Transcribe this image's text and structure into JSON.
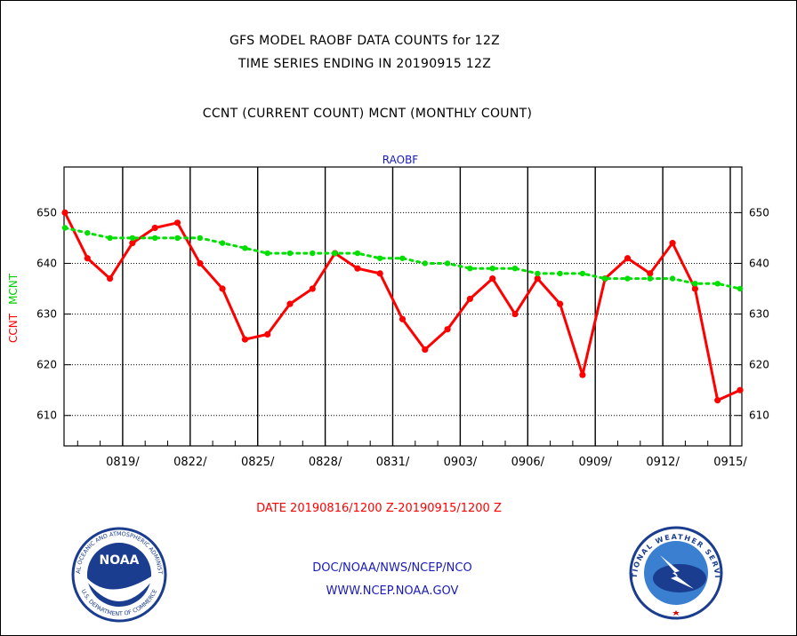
{
  "header": {
    "title_line1": "GFS MODEL RAOBF DATA COUNTS for 12Z",
    "title_line2": "TIME SERIES ENDING IN 20190915 12Z",
    "subtitle": "CCNT (CURRENT COUNT) MCNT (MONTHLY COUNT)"
  },
  "chart_data": {
    "type": "line",
    "title": "RAOBF",
    "ylabel_ccnt": "CCNT",
    "ylabel_mcnt": "MCNT",
    "ylim": [
      604,
      659
    ],
    "yticks": [
      610,
      620,
      630,
      640,
      650
    ],
    "xlabel": "DATE 20190816/1200 Z-20190915/1200 Z",
    "x_tick_labels": [
      "0819/",
      "0822/",
      "0825/",
      "0828/",
      "0831/",
      "0903/",
      "0906/",
      "0909/",
      "0912/",
      "0915/"
    ],
    "x": [
      "0816",
      "0817",
      "0818",
      "0819",
      "0820",
      "0821",
      "0822",
      "0823",
      "0824",
      "0825",
      "0826",
      "0827",
      "0828",
      "0829",
      "0830",
      "0831",
      "0901",
      "0902",
      "0903",
      "0904",
      "0905",
      "0906",
      "0907",
      "0908",
      "0909",
      "0910",
      "0911",
      "0912",
      "0913",
      "0914",
      "0915"
    ],
    "grid": true,
    "series": [
      {
        "name": "CCNT",
        "color": "#ff0000",
        "values": [
          650,
          641,
          637,
          644,
          647,
          648,
          640,
          635,
          625,
          626,
          632,
          635,
          642,
          639,
          638,
          629,
          623,
          627,
          633,
          637,
          630,
          637,
          632,
          618,
          637,
          641,
          638,
          644,
          635,
          613,
          615
        ]
      },
      {
        "name": "MCNT",
        "color": "#00e000",
        "values": [
          647,
          646,
          645,
          645,
          645,
          645,
          645,
          644,
          643,
          642,
          642,
          642,
          642,
          642,
          641,
          641,
          640,
          640,
          639,
          639,
          639,
          638,
          638,
          638,
          637,
          637,
          637,
          637,
          636,
          636,
          635
        ]
      }
    ]
  },
  "footer": {
    "agency": "DOC/NOAA/NWS/NCEP/NCO",
    "url": "WWW.NCEP.NOAA.GOV",
    "noaa_logo_text": "NOAA",
    "noaa_ring_text": "NATIONAL OCEANIC AND ATMOSPHERIC ADMINISTRATION",
    "noaa_ring_bottom": "U.S. DEPARTMENT OF COMMERCE",
    "nws_ring_text": "NATIONAL WEATHER SERVICE"
  }
}
